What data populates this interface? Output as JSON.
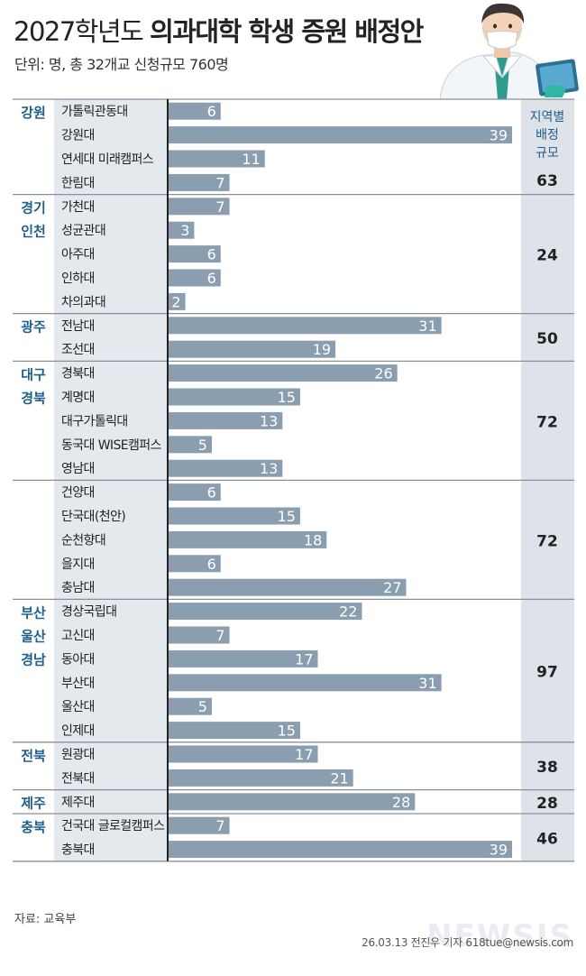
{
  "header": {
    "title_plain": "2027학년도",
    "title_bold": "의과대학 학생 증원 배정안",
    "subtitle": "단위: 명, 총 32개교 신청규모 760명"
  },
  "right_header": [
    "지역별",
    "배정",
    "규모"
  ],
  "footer": {
    "source": "자료: 교육부",
    "credit": "26.03.13 전진우 기자 618tue@newsis.com",
    "watermark": "NEWSIS"
  },
  "colors": {
    "bar": "#8a9eaf",
    "label_panel": "#e4e9ee",
    "right_panel": "#dde3e9",
    "region_text": "#1f5f8b",
    "separator": "#8b9099",
    "axis": "#222222"
  },
  "chart_data": {
    "type": "bar",
    "orientation": "horizontal",
    "unit": "명",
    "xlim": [
      0,
      39
    ],
    "groups": [
      {
        "region": [
          "강원"
        ],
        "total": 63,
        "items": [
          {
            "name": "가톨릭관동대",
            "value": 6
          },
          {
            "name": "강원대",
            "value": 39
          },
          {
            "name": "연세대 미래캠퍼스",
            "value": 11
          },
          {
            "name": "한림대",
            "value": 7
          }
        ]
      },
      {
        "region": [
          "경기",
          "인천"
        ],
        "total": 24,
        "items": [
          {
            "name": "가천대",
            "value": 7
          },
          {
            "name": "성균관대",
            "value": 3
          },
          {
            "name": "아주대",
            "value": 6
          },
          {
            "name": "인하대",
            "value": 6
          },
          {
            "name": "차의과대",
            "value": 2
          }
        ]
      },
      {
        "region": [
          "광주"
        ],
        "total": 50,
        "items": [
          {
            "name": "전남대",
            "value": 31
          },
          {
            "name": "조선대",
            "value": 19
          }
        ]
      },
      {
        "region": [
          "대구",
          "경북"
        ],
        "total": 72,
        "items": [
          {
            "name": "경북대",
            "value": 26
          },
          {
            "name": "계명대",
            "value": 15
          },
          {
            "name": "대구가톨릭대",
            "value": 13
          },
          {
            "name": "동국대 WISE캠퍼스",
            "value": 5
          },
          {
            "name": "영남대",
            "value": 13
          }
        ]
      },
      {
        "region": [],
        "total": 72,
        "items": [
          {
            "name": "건양대",
            "value": 6
          },
          {
            "name": "단국대(천안)",
            "value": 15
          },
          {
            "name": "순천향대",
            "value": 18
          },
          {
            "name": "을지대",
            "value": 6
          },
          {
            "name": "충남대",
            "value": 27
          }
        ]
      },
      {
        "region": [
          "부산",
          "울산",
          "경남"
        ],
        "total": 97,
        "items": [
          {
            "name": "경상국립대",
            "value": 22
          },
          {
            "name": "고신대",
            "value": 7
          },
          {
            "name": "동아대",
            "value": 17
          },
          {
            "name": "부산대",
            "value": 31
          },
          {
            "name": "울산대",
            "value": 5
          },
          {
            "name": "인제대",
            "value": 15
          }
        ]
      },
      {
        "region": [
          "전북"
        ],
        "total": 38,
        "items": [
          {
            "name": "원광대",
            "value": 17
          },
          {
            "name": "전북대",
            "value": 21
          }
        ]
      },
      {
        "region": [
          "제주"
        ],
        "total": 28,
        "items": [
          {
            "name": "제주대",
            "value": 28
          }
        ]
      },
      {
        "region": [
          "충북"
        ],
        "total": 46,
        "items": [
          {
            "name": "건국대 글로컬캠퍼스",
            "value": 7
          },
          {
            "name": "충북대",
            "value": 39
          }
        ]
      }
    ]
  }
}
